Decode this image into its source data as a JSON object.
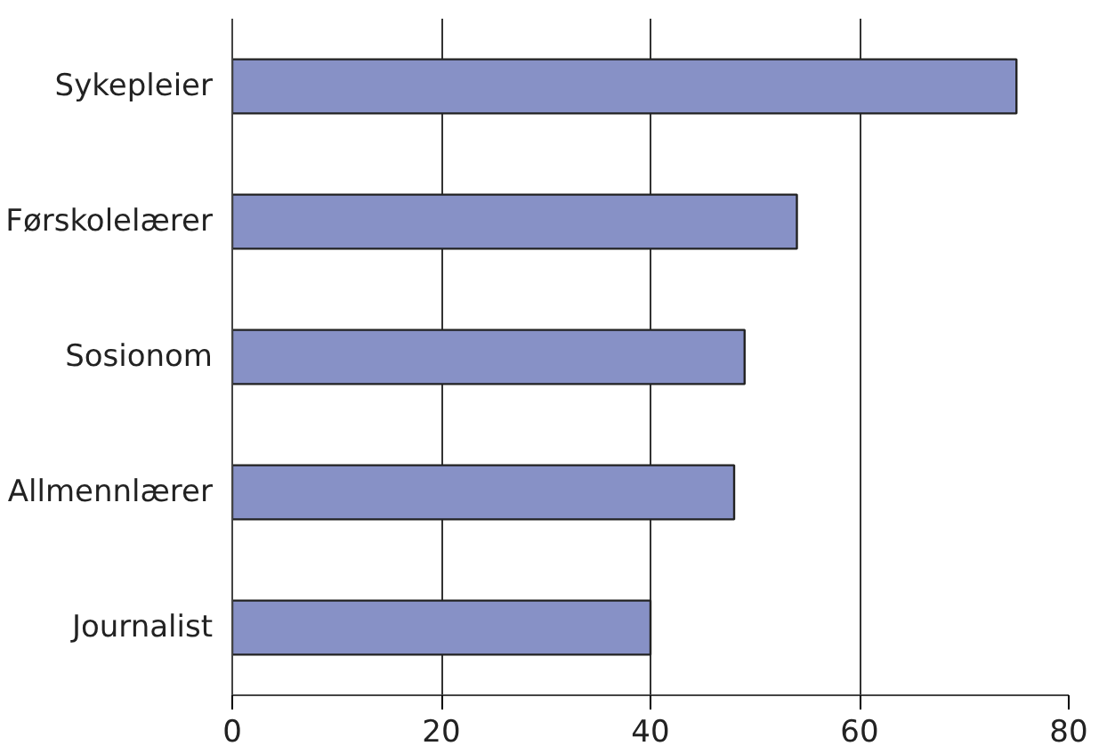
{
  "chart_data": {
    "type": "bar",
    "orientation": "horizontal",
    "categories": [
      "Sykepleier",
      "Førskolelærer",
      "Sosionom",
      "Allmennlærer",
      "Journalist"
    ],
    "values": [
      75,
      54,
      49,
      48,
      40
    ],
    "color": "#8791c6",
    "xlim": [
      0,
      80
    ],
    "xticks": [
      0,
      20,
      40,
      60,
      80
    ],
    "grid": "x"
  }
}
